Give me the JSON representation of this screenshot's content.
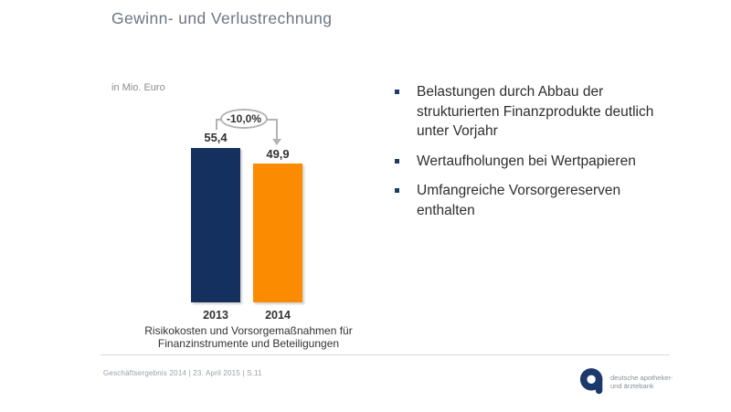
{
  "slide": {
    "title": "Gewinn- und Verlustrechnung",
    "footer": "Geschäftsergebnis 2014 | 23. April 2015 | S.11",
    "logo": {
      "glyph": "a",
      "line1": "deutsche apotheker-",
      "line2": "und ärztebank"
    }
  },
  "chart_data": {
    "type": "bar",
    "title": "",
    "unit_label": "in Mio. Euro",
    "categories": [
      "2013",
      "2014"
    ],
    "values": [
      55.4,
      49.9
    ],
    "value_labels": [
      "55,4",
      "49,9"
    ],
    "bar_colors": [
      "#13305f",
      "#fb8b00"
    ],
    "annotation": {
      "label": "-10,0%",
      "from_category": "2013",
      "to_category": "2014"
    },
    "caption": "Risikokosten und Vorsorgemaßnahmen für Finanzinstrumente und Beteiligungen",
    "ylim": [
      0,
      60
    ],
    "grid": false,
    "legend": false
  },
  "bullets": {
    "items": [
      {
        "text": "Belastungen durch Abbau der strukturierten Finanzprodukte deutlich unter Vorjahr"
      },
      {
        "text": "Wertaufholungen bei Wertpapieren"
      },
      {
        "text": "Umfangreiche Vorsorgereserven enthalten"
      }
    ]
  },
  "colors": {
    "navy": "#13305f",
    "orange": "#fb8b00",
    "title_gray": "#6f7486",
    "text_dark": "#2e2e2e",
    "muted_gray": "#8c8c8c",
    "bracket_gray": "#b3b3b3"
  }
}
